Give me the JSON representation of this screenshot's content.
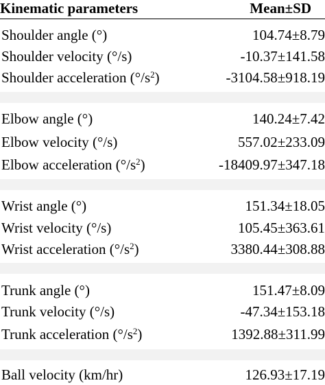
{
  "header": {
    "param_label": "Kinematic parameters",
    "value_label": "Mean±SD"
  },
  "groups": [
    {
      "rows": [
        {
          "param": "Shoulder angle (°)",
          "value": "104.74±8.79"
        },
        {
          "param": "Shoulder velocity (°/s)",
          "value": "-10.37±141.58"
        },
        {
          "param": "Shoulder acceleration (°/s",
          "sup": "2",
          "tail": ")",
          "value": "-3104.58±918.19"
        }
      ]
    },
    {
      "rows": [
        {
          "param": "Elbow angle (°)",
          "value": "140.24±7.42"
        },
        {
          "param": "Elbow velocity (°/s)",
          "value": "557.02±233.09"
        },
        {
          "param": "Elbow acceleration (°/s",
          "sup": "2",
          "tail": ")",
          "value": "-18409.97±347.18"
        }
      ]
    },
    {
      "rows": [
        {
          "param": "Wrist angle (°)",
          "value": "151.34±18.05"
        },
        {
          "param": "Wrist velocity (°/s)",
          "value": "105.45±363.61"
        },
        {
          "param": "Wrist acceleration (°/s",
          "sup": "2",
          "tail": ")",
          "value": "3380.44±308.88"
        }
      ]
    },
    {
      "rows": [
        {
          "param": "Trunk angle (°)",
          "value": "151.47±8.09"
        },
        {
          "param": "Trunk velocity (°/s)",
          "value": "-47.34±153.18"
        },
        {
          "param": "Trunk acceleration (°/s",
          "sup": "2",
          "tail": ")",
          "value": "1392.88±311.99"
        }
      ]
    },
    {
      "rows": [
        {
          "param": "Ball velocity (km/hr)",
          "value": "126.93±17.19"
        }
      ]
    }
  ]
}
